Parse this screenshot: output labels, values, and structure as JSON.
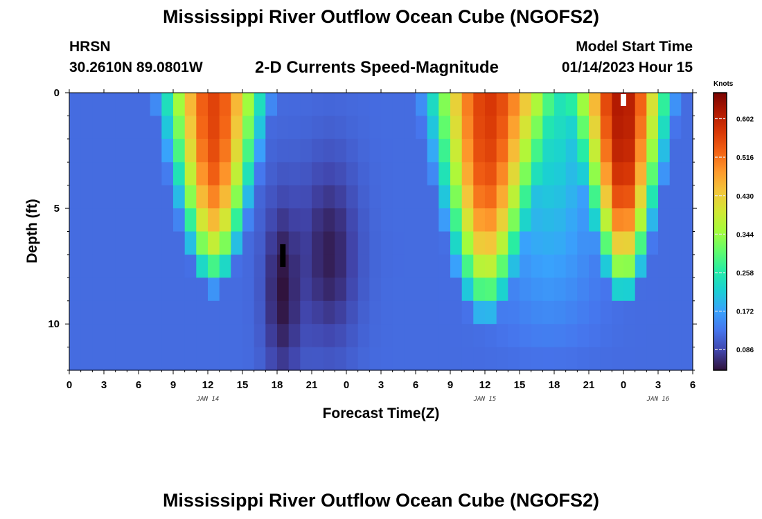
{
  "header": {
    "title": "Mississippi River Outflow Ocean Cube (NGOFS2)",
    "station": "HRSN",
    "coords": "30.2610N  89.0801W",
    "subtitle": "2-D Currents Speed-Magnitude",
    "start_label": "Model Start Time",
    "start_value": "01/14/2023 Hour 15"
  },
  "footer": {
    "title": "Mississippi River Outflow Ocean Cube (NGOFS2)"
  },
  "colors": {
    "colormap": [
      "#30123b",
      "#4145ab",
      "#4675ed",
      "#39a2fc",
      "#1bcfd4",
      "#24eca6",
      "#61fc6c",
      "#a4fc3b",
      "#d1e834",
      "#f3c63a",
      "#fe9b2d",
      "#f36315",
      "#d93806",
      "#b11901",
      "#7a0402"
    ]
  },
  "chart_data": {
    "type": "heatmap",
    "title": "2-D Currents Speed-Magnitude",
    "xlabel": "Forecast Time(Z)",
    "ylabel": "Depth (ft)",
    "x_range_hours": [
      0,
      54
    ],
    "y_range_ft": [
      0,
      12
    ],
    "x_tick_labels": [
      "0",
      "3",
      "6",
      "9",
      "12",
      "15",
      "18",
      "21",
      "0",
      "3",
      "6",
      "9",
      "12",
      "15",
      "18",
      "21",
      "0",
      "3",
      "6"
    ],
    "y_ticks": [
      0,
      5,
      10
    ],
    "y_tick_labels": [
      "0",
      "5",
      "10"
    ],
    "date_labels": [
      {
        "label": "JAN 14",
        "hour": 12
      },
      {
        "label": "JAN 15",
        "hour": 36
      },
      {
        "label": "JAN 16",
        "hour": 51
      }
    ],
    "colorbar": {
      "units": "Knots",
      "min": 0.04,
      "max": 0.66,
      "ticks": [
        0.086,
        0.172,
        0.258,
        0.344,
        0.43,
        0.516,
        0.602
      ],
      "tick_labels": [
        "0.086",
        "0.172",
        "0.258",
        "0.344",
        "0.430",
        "0.516",
        "0.602"
      ]
    },
    "speed_model": {
      "peaks": [
        {
          "center_hour": 12.5,
          "surface_width_hours": 4.5,
          "bottom_width_hours": 0.8,
          "decay_depth_ft": 9.5,
          "max_knots": 0.56
        },
        {
          "center_hour": 36.0,
          "surface_width_hours": 5.0,
          "bottom_width_hours": 1.5,
          "decay_depth_ft": 11.0,
          "max_knots": 0.55
        },
        {
          "center_hour": 48.0,
          "surface_width_hours": 4.0,
          "bottom_width_hours": 0.8,
          "decay_depth_ft": 10.0,
          "max_knots": 0.61
        }
      ],
      "secondary": {
        "center_hour": 41.5,
        "width_hours": 4.0,
        "max_knots": 0.14
      },
      "slack": [
        {
          "center_hour": 18.5,
          "width_hours": 1.6,
          "depth_center_ft": 8.5,
          "min_knots": 0.04
        },
        {
          "center_hour": 22.5,
          "width_hours": 2.5,
          "depth_center_ft": 7.0,
          "min_knots": 0.05
        }
      ],
      "background_knots": 0.12,
      "missing_cells": [
        {
          "hour": 18.5,
          "depth_ft": 7.0,
          "color": "#000000"
        },
        {
          "hour": 48.0,
          "depth_ft": 0.3,
          "color": "#ffffff"
        }
      ]
    }
  }
}
